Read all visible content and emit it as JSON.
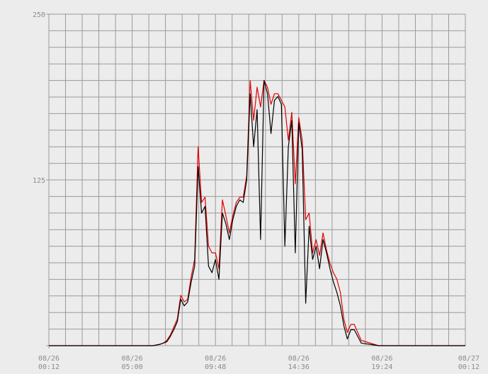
{
  "chart_data": {
    "type": "line",
    "title": "",
    "xlabel": "",
    "ylabel": "",
    "ylim": [
      0,
      250
    ],
    "yticks": [
      {
        "value": 0,
        "label": ""
      },
      {
        "value": 125,
        "label": "125"
      },
      {
        "value": 250,
        "label": "250"
      }
    ],
    "xlim": [
      "08/26 00:12",
      "08/27 00:12"
    ],
    "xticks": [
      {
        "hours": 0,
        "date": "08/26",
        "time": "00:12"
      },
      {
        "hours": 4.8,
        "date": "08/26",
        "time": "05:00"
      },
      {
        "hours": 9.6,
        "date": "08/26",
        "time": "09:48"
      },
      {
        "hours": 14.4,
        "date": "08/26",
        "time": "14:36"
      },
      {
        "hours": 19.2,
        "date": "08/26",
        "time": "19:24"
      },
      {
        "hours": 24,
        "date": "08/27",
        "time": "00:12"
      }
    ],
    "grid": true,
    "series": [
      {
        "color": "#e00000",
        "x": [
          0,
          1,
          2,
          3,
          4,
          5,
          6,
          6.4,
          6.6,
          6.8,
          7,
          7.2,
          7.4,
          7.6,
          7.8,
          8,
          8.2,
          8.4,
          8.6,
          8.8,
          9,
          9.2,
          9.4,
          9.6,
          9.8,
          10,
          10.2,
          10.4,
          10.6,
          10.8,
          11,
          11.2,
          11.4,
          11.6,
          11.8,
          12,
          12.2,
          12.4,
          12.6,
          12.8,
          13,
          13.2,
          13.4,
          13.6,
          13.8,
          14,
          14.2,
          14.4,
          14.6,
          14.8,
          15,
          15.2,
          15.4,
          15.6,
          15.8,
          16,
          16.2,
          16.4,
          16.6,
          16.8,
          17,
          17.2,
          17.4,
          17.6,
          18,
          19,
          20,
          21,
          22,
          23,
          24
        ],
        "y": [
          0,
          0,
          0,
          0,
          0,
          0,
          0,
          1,
          2,
          4,
          8,
          14,
          20,
          38,
          33,
          35,
          52,
          65,
          150,
          108,
          112,
          75,
          70,
          70,
          58,
          110,
          98,
          85,
          98,
          108,
          112,
          112,
          128,
          200,
          170,
          195,
          180,
          200,
          195,
          182,
          190,
          190,
          185,
          180,
          155,
          176,
          122,
          172,
          155,
          95,
          100,
          70,
          80,
          68,
          85,
          72,
          62,
          55,
          50,
          40,
          20,
          10,
          16,
          16,
          4,
          0,
          0,
          0,
          0,
          0,
          0
        ]
      },
      {
        "color": "#000000",
        "x": [
          0,
          1,
          2,
          3,
          4,
          5,
          6,
          6.4,
          6.6,
          6.8,
          7,
          7.2,
          7.4,
          7.6,
          7.8,
          8,
          8.2,
          8.4,
          8.6,
          8.8,
          9,
          9.2,
          9.4,
          9.6,
          9.8,
          10,
          10.2,
          10.4,
          10.6,
          10.8,
          11,
          11.2,
          11.4,
          11.6,
          11.8,
          12,
          12.2,
          12.4,
          12.6,
          12.8,
          13,
          13.2,
          13.4,
          13.6,
          13.8,
          14,
          14.2,
          14.4,
          14.6,
          14.8,
          15,
          15.2,
          15.4,
          15.6,
          15.8,
          16,
          16.2,
          16.4,
          16.6,
          16.8,
          17,
          17.2,
          17.4,
          17.6,
          18,
          19,
          20,
          21,
          22,
          23,
          24
        ],
        "y": [
          0,
          0,
          0,
          0,
          0,
          0,
          0,
          1,
          2,
          3,
          7,
          12,
          18,
          35,
          30,
          33,
          48,
          60,
          135,
          100,
          105,
          60,
          55,
          65,
          50,
          100,
          92,
          80,
          95,
          105,
          110,
          108,
          125,
          190,
          150,
          178,
          80,
          200,
          190,
          160,
          185,
          188,
          182,
          75,
          150,
          170,
          70,
          168,
          148,
          32,
          90,
          65,
          75,
          58,
          80,
          70,
          58,
          48,
          40,
          30,
          15,
          5,
          12,
          12,
          2,
          0,
          0,
          0,
          0,
          0,
          0
        ]
      }
    ]
  }
}
